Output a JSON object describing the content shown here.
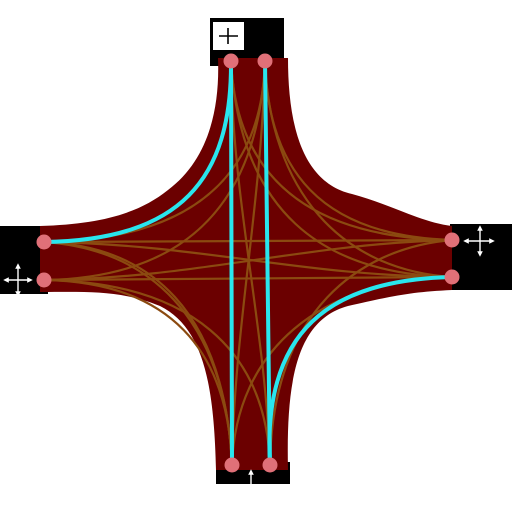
{
  "diagram": {
    "kind": "intersection-lane-map",
    "colors": {
      "background": "#ffffff",
      "road_arm": "#000000",
      "junction_area": "#6b0000",
      "connector_lane": "#8b4a10",
      "highlighted_lane": "#29e6ee",
      "lane_node": "#e07078",
      "direction_marker": "#ffffff"
    },
    "entry_points": [
      {
        "id": "north-left",
        "arm": "north"
      },
      {
        "id": "north-right",
        "arm": "north"
      },
      {
        "id": "west-top",
        "arm": "west"
      },
      {
        "id": "west-bottom",
        "arm": "west"
      },
      {
        "id": "east-top",
        "arm": "east"
      },
      {
        "id": "east-bottom",
        "arm": "east"
      },
      {
        "id": "south-left",
        "arm": "south"
      },
      {
        "id": "south-right",
        "arm": "south"
      }
    ],
    "highlighted_routes": [
      {
        "from": "north-left",
        "to": "west-top",
        "maneuver": "turn"
      },
      {
        "from": "north-left",
        "to": "south-left",
        "maneuver": "straight"
      },
      {
        "from": "north-right",
        "to": "south-right",
        "maneuver": "straight"
      },
      {
        "from": "east-bottom",
        "to": "south-right",
        "maneuver": "turn"
      }
    ],
    "direction_markers": [
      {
        "arm": "north",
        "icon": "horizontal-vertical-arrows-icon"
      },
      {
        "arm": "west",
        "icon": "horizontal-vertical-arrows-icon"
      },
      {
        "arm": "east",
        "icon": "horizontal-vertical-arrows-icon"
      },
      {
        "arm": "south",
        "icon": "vertical-arrow-icon"
      }
    ]
  }
}
